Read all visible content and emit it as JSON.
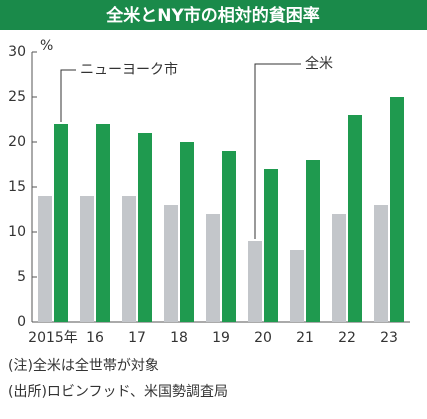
{
  "chart_data": {
    "type": "bar",
    "title": "全米とNY市の相対的貧困率",
    "unit": "%",
    "categories": [
      "2015年",
      "16",
      "17",
      "18",
      "19",
      "20",
      "21",
      "22",
      "23"
    ],
    "series": [
      {
        "name": "全米",
        "color": "#c3c6ca",
        "values": [
          14,
          14,
          14,
          13,
          12,
          9,
          8,
          12,
          13
        ]
      },
      {
        "name": "ニューヨーク市",
        "color": "#1f9a4f",
        "values": [
          22,
          22,
          21,
          20,
          19,
          17,
          18,
          23,
          25
        ]
      }
    ],
    "ylim": [
      0,
      30
    ],
    "yticks": [
      0,
      5,
      10,
      15,
      20,
      25,
      30
    ],
    "notes": [
      "(注)全米は全世帯が対象",
      "(出所)ロビンフッド、米国勢調査局"
    ]
  }
}
